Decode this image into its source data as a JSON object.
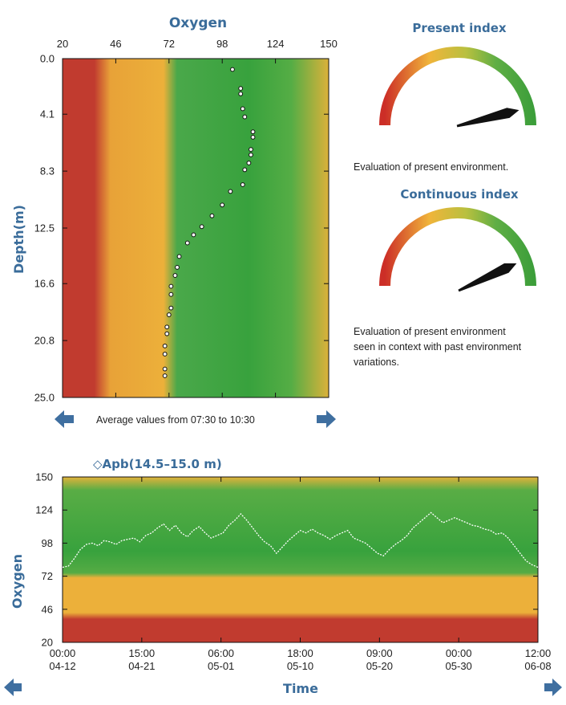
{
  "colors": {
    "red": "#c0392b",
    "orange": "#ecae3a",
    "green": "#3aa53f",
    "title_blue": "#3a6c9a",
    "nav_blue": "#3f6fa0"
  },
  "chart_data": [
    {
      "type": "scatter",
      "title": "Oxygen",
      "xlabel": "Oxygen",
      "ylabel": "Depth(m)",
      "xlim": [
        20,
        150
      ],
      "ylim": [
        0.0,
        25.0
      ],
      "y_inverted": true,
      "x_axis_position": "top",
      "x_ticks": [
        "20",
        "46",
        "72",
        "98",
        "124",
        "150"
      ],
      "y_ticks": [
        "0.0",
        "4.1",
        "8.3",
        "12.5",
        "16.6",
        "20.8",
        "25.0"
      ],
      "background_bands": [
        {
          "range": [
            20,
            39
          ],
          "color": "red"
        },
        {
          "range": [
            39,
            72
          ],
          "color": "orange"
        },
        {
          "range": [
            72,
            130
          ],
          "color": "green"
        },
        {
          "range": [
            130,
            150
          ],
          "color": "orange"
        }
      ],
      "series": [
        {
          "x": [
            103,
            107,
            107,
            108,
            109,
            113,
            113,
            112,
            112,
            111,
            109,
            108,
            102,
            98,
            93,
            88,
            84,
            81,
            77,
            76,
            75,
            73,
            73,
            73,
            72,
            71,
            71,
            70,
            70,
            70,
            70
          ],
          "y": [
            0.8,
            2.2,
            2.6,
            3.7,
            4.3,
            5.4,
            5.8,
            6.7,
            7.1,
            7.7,
            8.2,
            9.3,
            9.8,
            10.8,
            11.6,
            12.4,
            13.0,
            13.6,
            14.6,
            15.4,
            16.0,
            16.8,
            17.4,
            18.4,
            18.9,
            19.8,
            20.3,
            21.2,
            21.8,
            22.9,
            23.4
          ]
        }
      ],
      "caption_prefix": "Average values from",
      "caption_from": "07:30",
      "caption_to_word": "to",
      "caption_to": "10:30"
    },
    {
      "type": "line",
      "title": "◇Apb(14.5–15.0 m)",
      "xlabel": "Time",
      "ylabel": "Oxygen",
      "ylim": [
        20,
        150
      ],
      "y_ticks": [
        "150",
        "124",
        "98",
        "72",
        "46",
        "20"
      ],
      "x_ticks": [
        {
          "time": "00:00",
          "date": "04-12"
        },
        {
          "time": "15:00",
          "date": "04-21"
        },
        {
          "time": "06:00",
          "date": "05-01"
        },
        {
          "time": "18:00",
          "date": "05-10"
        },
        {
          "time": "09:00",
          "date": "05-20"
        },
        {
          "time": "00:00",
          "date": "05-30"
        },
        {
          "time": "12:00",
          "date": "06-08"
        }
      ],
      "background_bands": [
        {
          "range": [
            20,
            38
          ],
          "color": "red"
        },
        {
          "range": [
            38,
            75
          ],
          "color": "orange"
        },
        {
          "range": [
            75,
            140
          ],
          "color": "green"
        },
        {
          "range": [
            140,
            150
          ],
          "color": "orange"
        }
      ],
      "series": [
        {
          "values": [
            79,
            80,
            86,
            93,
            97,
            98,
            96,
            100,
            99,
            97,
            100,
            101,
            102,
            99,
            104,
            106,
            110,
            113,
            108,
            112,
            106,
            103,
            108,
            111,
            106,
            102,
            104,
            106,
            112,
            116,
            121,
            116,
            110,
            104,
            99,
            96,
            90,
            95,
            100,
            104,
            108,
            106,
            109,
            106,
            104,
            101,
            104,
            106,
            108,
            102,
            100,
            98,
            94,
            90,
            88,
            93,
            97,
            100,
            104,
            110,
            114,
            118,
            122,
            118,
            114,
            116,
            118,
            116,
            114,
            112,
            111,
            109,
            108,
            105,
            106,
            102,
            96,
            90,
            84,
            81,
            79
          ]
        }
      ]
    }
  ],
  "gauges": [
    {
      "title": "Present index",
      "value": 0.92,
      "caption": [
        "Evaluation of present environment."
      ]
    },
    {
      "title": "Continuous index",
      "value": 0.86,
      "caption": [
        "Evaluation of present environment",
        "seen in context with past environment",
        "variations."
      ]
    }
  ]
}
